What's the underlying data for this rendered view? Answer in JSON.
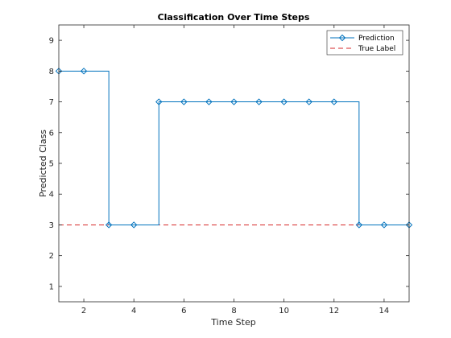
{
  "colors": {
    "prediction": "#0072BD",
    "true_label": "#D62728",
    "axes": "#262626",
    "background": "#ffffff"
  },
  "chart_data": {
    "type": "line",
    "title": "Classification Over Time Steps",
    "xlabel": "Time Step",
    "ylabel": "Predicted Class",
    "xlim": [
      1,
      15
    ],
    "ylim": [
      0.5,
      9.5
    ],
    "xticks": [
      2,
      4,
      6,
      8,
      10,
      12,
      14
    ],
    "yticks": [
      1,
      2,
      3,
      4,
      5,
      6,
      7,
      8,
      9
    ],
    "grid": false,
    "legend_position": "top-right",
    "series": [
      {
        "name": "Prediction",
        "style": "stairs",
        "marker": "diamond",
        "x": [
          1,
          2,
          3,
          4,
          5,
          6,
          7,
          8,
          9,
          10,
          11,
          12,
          13,
          14,
          15
        ],
        "values": [
          8,
          8,
          3,
          3,
          7,
          7,
          7,
          7,
          7,
          7,
          7,
          7,
          3,
          3,
          3
        ]
      },
      {
        "name": "True Label",
        "style": "dashed",
        "x": [
          1,
          15
        ],
        "values": [
          3,
          3
        ]
      }
    ]
  }
}
